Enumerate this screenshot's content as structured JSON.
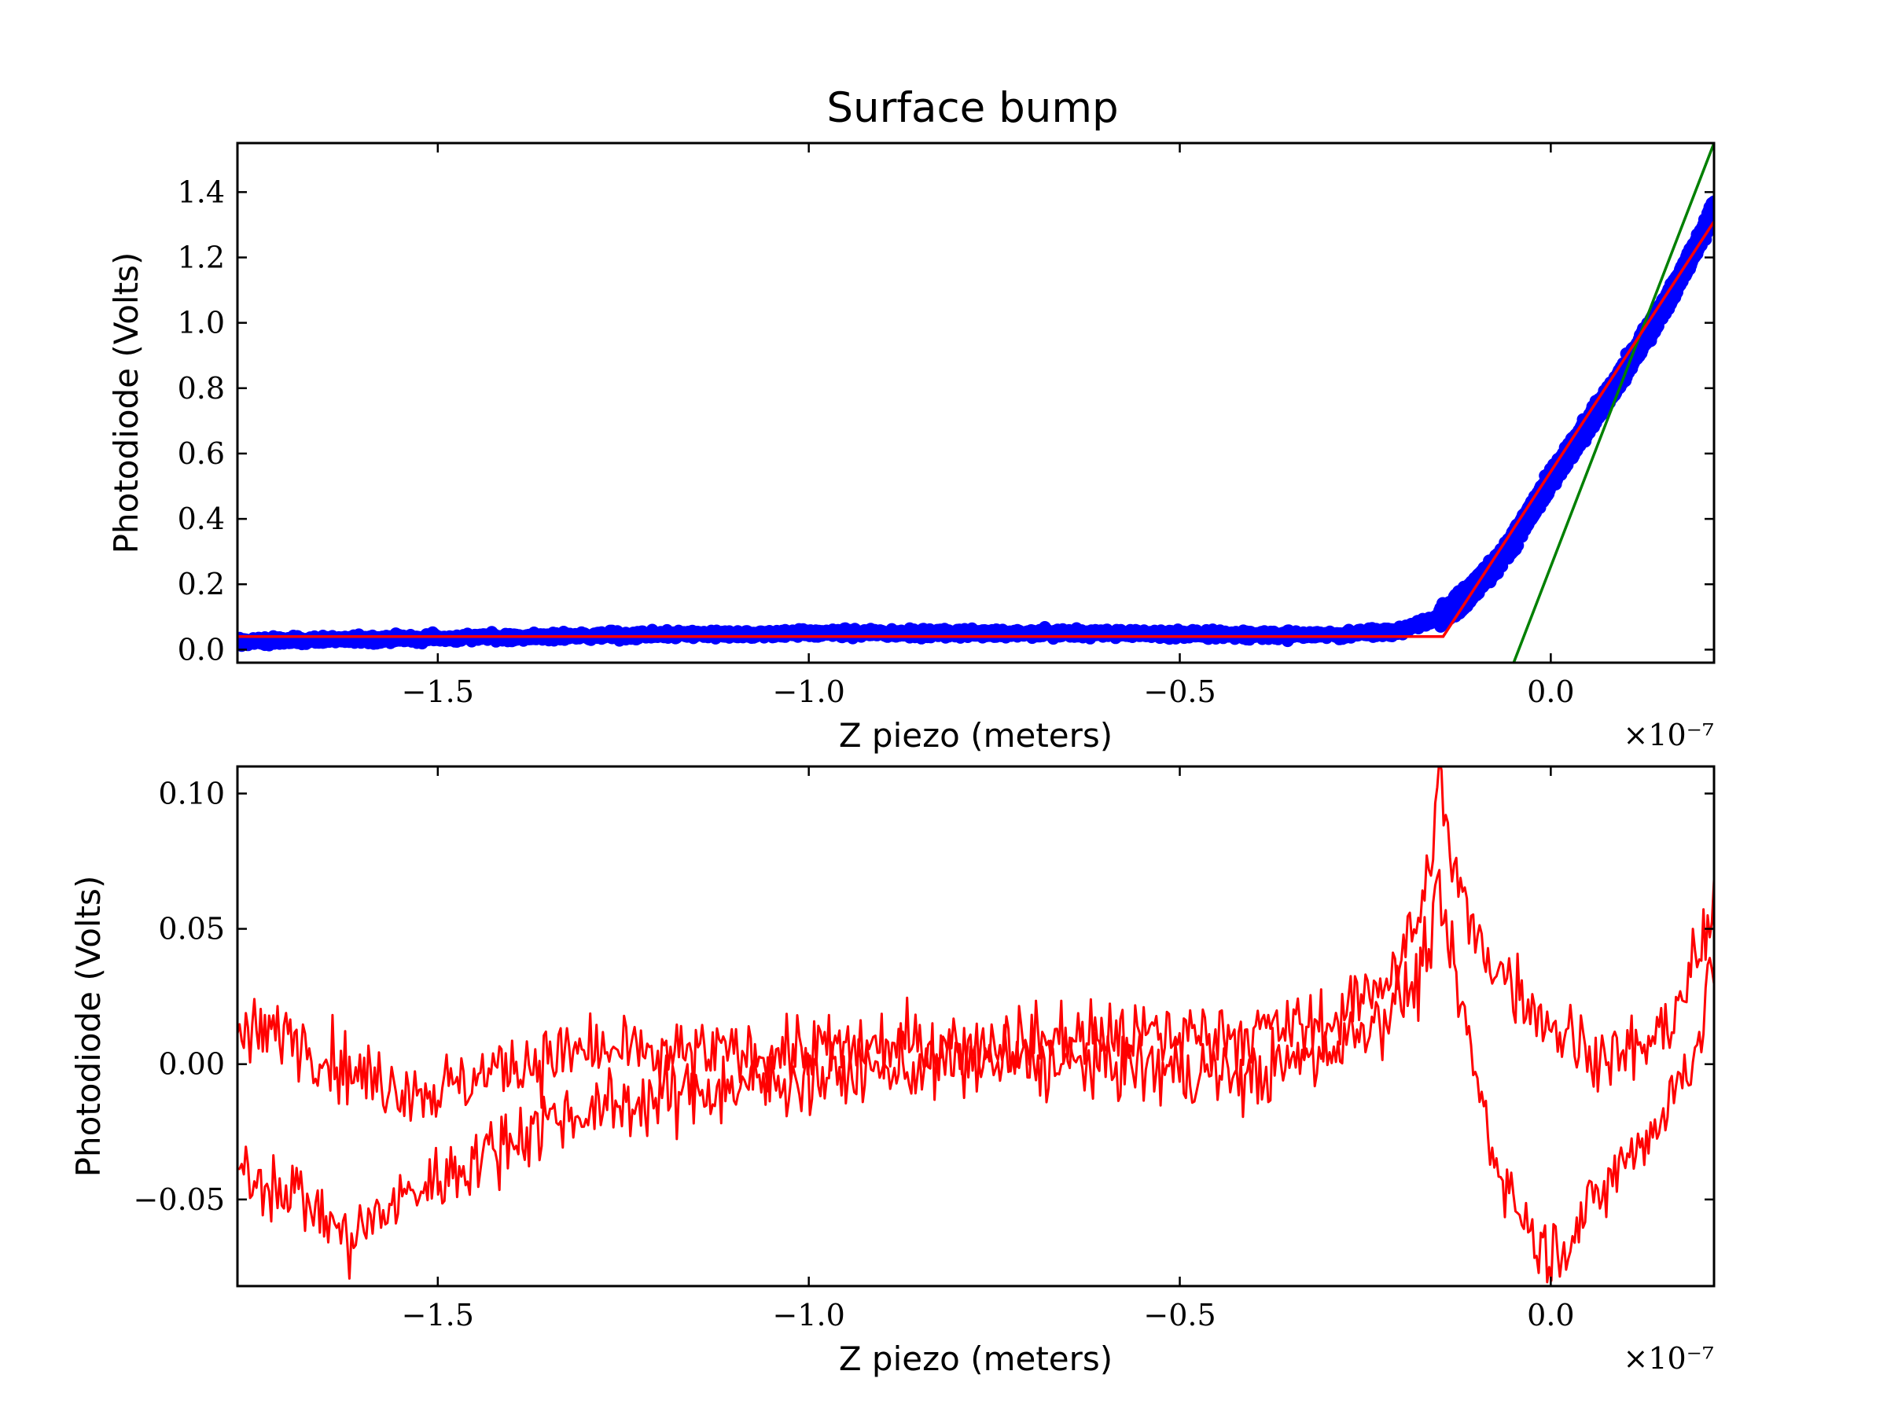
{
  "chart_data": [
    {
      "type": "scatter",
      "title": "Surface bump",
      "xlabel": "Z piezo (meters)",
      "ylabel": "Photodiode (Volts)",
      "x_multiplier_label": "×10⁻⁷",
      "x_unit_scale": 1e-07,
      "xlim": [
        -1.77,
        0.22
      ],
      "ylim": [
        -0.04,
        1.55
      ],
      "xticks": [
        -1.5,
        -1.0,
        -0.5,
        0.0
      ],
      "xtick_labels": [
        "−1.5",
        "−1.0",
        "−0.5",
        "0.0"
      ],
      "yticks": [
        0.0,
        0.2,
        0.4,
        0.6,
        0.8,
        1.0,
        1.2,
        1.4
      ],
      "ytick_labels": [
        "0.0",
        "0.2",
        "0.4",
        "0.6",
        "0.8",
        "1.0",
        "1.2",
        "1.4"
      ],
      "grid": false,
      "series": [
        {
          "kind": "scatter",
          "color": "#0000ff",
          "x": [
            -1.77,
            -1.65,
            -1.5,
            -1.35,
            -1.2,
            -1.0,
            -0.8,
            -0.6,
            -0.4,
            -0.3,
            -0.25,
            -0.2,
            -0.15,
            -0.12,
            -0.09,
            -0.06,
            -0.03,
            0.0,
            0.03,
            0.06,
            0.09,
            0.12,
            0.15,
            0.18,
            0.21,
            0.22
          ],
          "y": [
            0.025,
            0.03,
            0.035,
            0.04,
            0.045,
            0.05,
            0.05,
            0.05,
            0.045,
            0.045,
            0.05,
            0.06,
            0.1,
            0.15,
            0.22,
            0.3,
            0.41,
            0.52,
            0.62,
            0.72,
            0.82,
            0.93,
            1.04,
            1.16,
            1.3,
            1.35
          ]
        },
        {
          "kind": "line",
          "color": "#008000",
          "x": [
            -0.05,
            0.22
          ],
          "y": [
            -0.04,
            1.55
          ]
        },
        {
          "kind": "line",
          "color": "#ff0000",
          "x": [
            -1.77,
            -0.145,
            0.22
          ],
          "y": [
            0.04,
            0.04,
            1.31
          ]
        }
      ]
    },
    {
      "type": "line",
      "xlabel": "Z piezo (meters)",
      "ylabel": "Photodiode (Volts)",
      "x_multiplier_label": "×10⁻⁷",
      "x_unit_scale": 1e-07,
      "xlim": [
        -1.77,
        0.22
      ],
      "ylim": [
        -0.082,
        0.11
      ],
      "xticks": [
        -1.5,
        -1.0,
        -0.5,
        0.0
      ],
      "xtick_labels": [
        "−1.5",
        "−1.0",
        "−0.5",
        "0.0"
      ],
      "yticks": [
        -0.05,
        0.0,
        0.05,
        0.1
      ],
      "ytick_labels": [
        "−0.05",
        "0.00",
        "0.05",
        "0.10"
      ],
      "grid": false,
      "series": [
        {
          "color": "#ff0000",
          "x": [
            -1.77,
            -1.7,
            -1.6,
            -1.5,
            -1.4,
            -1.3,
            -1.2,
            -1.0,
            -0.8,
            -0.6,
            -0.4,
            -0.3,
            -0.25,
            -0.2,
            -0.17,
            -0.15,
            -0.13,
            -0.1,
            -0.05,
            0.0,
            0.05,
            0.1,
            0.15,
            0.2,
            0.22
          ],
          "y": [
            0.01,
            0.012,
            -0.005,
            -0.01,
            0.0,
            0.005,
            0.003,
            0.005,
            0.008,
            0.01,
            0.012,
            0.015,
            0.025,
            0.04,
            0.06,
            0.105,
            0.07,
            0.045,
            0.03,
            0.015,
            0.005,
            0.003,
            0.01,
            0.04,
            0.055
          ]
        },
        {
          "color": "#ff0000",
          "x": [
            -1.77,
            -1.7,
            -1.62,
            -1.55,
            -1.45,
            -1.35,
            -1.25,
            -1.15,
            -1.0,
            -0.8,
            -0.6,
            -0.4,
            -0.3,
            -0.22,
            -0.18,
            -0.15,
            -0.12,
            -0.08,
            -0.05,
            -0.02,
            0.0,
            0.05,
            0.1,
            0.15,
            0.2,
            0.22
          ],
          "y": [
            -0.04,
            -0.045,
            -0.065,
            -0.05,
            -0.035,
            -0.02,
            -0.015,
            -0.01,
            -0.005,
            0.0,
            0.0,
            -0.005,
            0.005,
            0.02,
            0.03,
            0.06,
            0.02,
            -0.03,
            -0.05,
            -0.065,
            -0.07,
            -0.055,
            -0.035,
            -0.02,
            0.01,
            0.04
          ]
        }
      ]
    }
  ]
}
